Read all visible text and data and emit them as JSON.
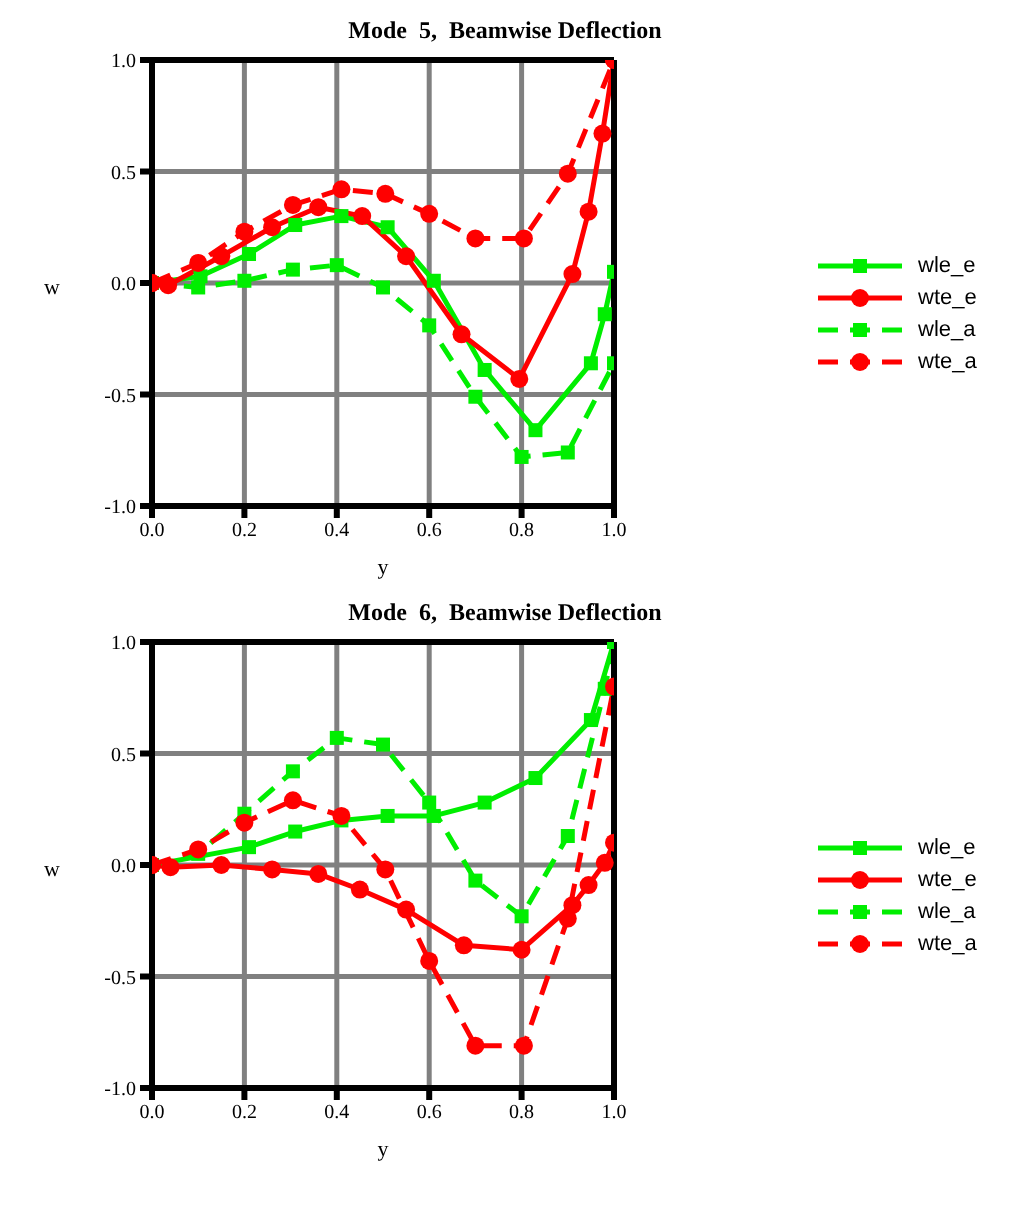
{
  "chart_data": [
    {
      "type": "line",
      "title": "Mode  5,  Beamwise Deflection",
      "xlabel": "y",
      "ylabel": "w",
      "xlim": [
        0,
        1
      ],
      "xticks": [
        {
          "value": 0,
          "label": "0.0"
        },
        {
          "value": 0.2,
          "label": "0.2"
        },
        {
          "value": 0.4,
          "label": "0.4"
        },
        {
          "value": 0.6,
          "label": "0.6"
        },
        {
          "value": 0.8,
          "label": "0.8"
        },
        {
          "value": 1,
          "label": "1.0"
        }
      ],
      "ylim": [
        -1,
        1
      ],
      "yticks": [
        {
          "value": -1,
          "label": "-1.0"
        },
        {
          "value": -0.5,
          "label": "-0.5"
        },
        {
          "value": 0,
          "label": "0.0"
        },
        {
          "value": 0.5,
          "label": "0.5"
        },
        {
          "value": 1,
          "label": "1.0"
        }
      ],
      "grid": true,
      "legend": "right",
      "series": [
        {
          "name": "wle_e",
          "color": "#00ee00",
          "marker": "square",
          "line_style": "solid",
          "x": [
            0,
            0.105,
            0.21,
            0.31,
            0.41,
            0.51,
            0.61,
            0.72,
            0.83,
            0.95,
            0.98,
            1.0
          ],
          "values": [
            0,
            0.03,
            0.13,
            0.26,
            0.3,
            0.25,
            0.01,
            -0.39,
            -0.66,
            -0.36,
            -0.14,
            0.05
          ]
        },
        {
          "name": "wte_e",
          "color": "#ff0000",
          "marker": "circle",
          "line_style": "solid",
          "x": [
            0,
            0.035,
            0.15,
            0.26,
            0.36,
            0.455,
            0.55,
            0.67,
            0.795,
            0.91,
            0.945,
            0.975,
            1.0
          ],
          "values": [
            0,
            -0.01,
            0.12,
            0.25,
            0.34,
            0.3,
            0.12,
            -0.23,
            -0.43,
            0.04,
            0.32,
            0.67,
            1.0
          ]
        },
        {
          "name": "wle_a",
          "color": "#00ee00",
          "marker": "square",
          "line_style": "dashed",
          "x": [
            0,
            0.1,
            0.2,
            0.305,
            0.4,
            0.5,
            0.6,
            0.7,
            0.8,
            0.9,
            1.0
          ],
          "values": [
            0,
            -0.02,
            0.01,
            0.06,
            0.08,
            -0.02,
            -0.19,
            -0.51,
            -0.78,
            -0.76,
            -0.36
          ]
        },
        {
          "name": "wte_a",
          "color": "#ff0000",
          "marker": "circle",
          "line_style": "dashed",
          "x": [
            0,
            0.1,
            0.2,
            0.305,
            0.41,
            0.505,
            0.6,
            0.7,
            0.805,
            0.9,
            1.0
          ],
          "values": [
            0,
            0.09,
            0.23,
            0.35,
            0.42,
            0.4,
            0.31,
            0.2,
            0.2,
            0.49,
            1.0
          ]
        }
      ]
    },
    {
      "type": "line",
      "title": "Mode  6,  Beamwise Deflection",
      "xlabel": "y",
      "ylabel": "w",
      "xlim": [
        0,
        1
      ],
      "xticks": [
        {
          "value": 0,
          "label": "0.0"
        },
        {
          "value": 0.2,
          "label": "0.2"
        },
        {
          "value": 0.4,
          "label": "0.4"
        },
        {
          "value": 0.6,
          "label": "0.6"
        },
        {
          "value": 0.8,
          "label": "0.8"
        },
        {
          "value": 1,
          "label": "1.0"
        }
      ],
      "ylim": [
        -1,
        1
      ],
      "yticks": [
        {
          "value": -1,
          "label": "-1.0"
        },
        {
          "value": -0.5,
          "label": "-0.5"
        },
        {
          "value": 0,
          "label": "0.0"
        },
        {
          "value": 0.5,
          "label": "0.5"
        },
        {
          "value": 1,
          "label": "1.0"
        }
      ],
      "grid": true,
      "legend": "right",
      "series": [
        {
          "name": "wle_e",
          "color": "#00ee00",
          "marker": "square",
          "line_style": "solid",
          "x": [
            0,
            0.21,
            0.31,
            0.41,
            0.51,
            0.61,
            0.72,
            0.83,
            0.95,
            1.0
          ],
          "values": [
            0,
            0.08,
            0.15,
            0.2,
            0.22,
            0.22,
            0.28,
            0.39,
            0.65,
            1.0
          ]
        },
        {
          "name": "wte_e",
          "color": "#ff0000",
          "marker": "circle",
          "line_style": "solid",
          "x": [
            0,
            0.04,
            0.15,
            0.26,
            0.36,
            0.45,
            0.55,
            0.675,
            0.8,
            0.91,
            0.945,
            0.98,
            1.0
          ],
          "values": [
            0,
            -0.01,
            0,
            -0.02,
            -0.04,
            -0.11,
            -0.2,
            -0.36,
            -0.38,
            -0.18,
            -0.09,
            0.01,
            0.1
          ]
        },
        {
          "name": "wle_a",
          "color": "#00ee00",
          "marker": "square",
          "line_style": "dashed",
          "x": [
            0,
            0.1,
            0.2,
            0.305,
            0.4,
            0.5,
            0.6,
            0.7,
            0.8,
            0.9,
            0.98,
            1.0
          ],
          "values": [
            0,
            0.05,
            0.23,
            0.42,
            0.57,
            0.54,
            0.28,
            -0.07,
            -0.23,
            0.13,
            0.79,
            1.0
          ]
        },
        {
          "name": "wte_a",
          "color": "#ff0000",
          "marker": "circle",
          "line_style": "dashed",
          "x": [
            0,
            0.1,
            0.2,
            0.305,
            0.41,
            0.505,
            0.6,
            0.7,
            0.805,
            0.9,
            1.0
          ],
          "values": [
            0,
            0.07,
            0.19,
            0.29,
            0.22,
            -0.02,
            -0.43,
            -0.81,
            -0.81,
            -0.24,
            0.8
          ]
        }
      ]
    }
  ]
}
